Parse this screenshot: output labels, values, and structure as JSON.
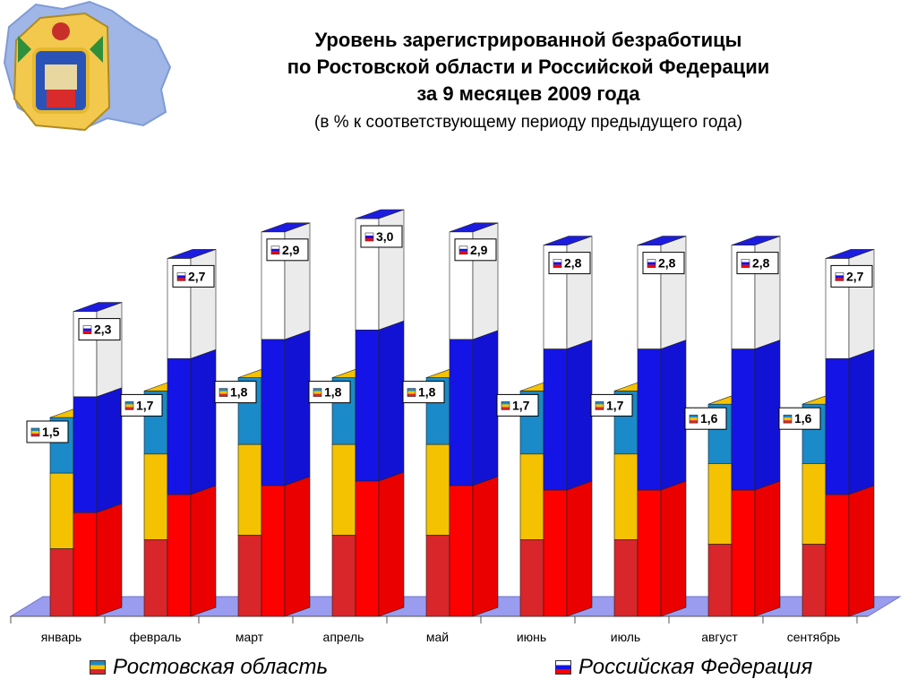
{
  "header": {
    "title_line1": "Уровень зарегистрированной безработицы",
    "title_line2": "по Ростовской области и Российской Федерации",
    "title_line3": "за 9 месяцев 2009 года",
    "subtitle": "(в % к соответствующему периоду предыдущего года)"
  },
  "emblem": {
    "icon": "rostov-oblast-coat-of-arms-icon"
  },
  "chart_data": {
    "type": "bar",
    "title": "Уровень зарегистрированной безработицы по Ростовской области и Российской Федерации за 9 месяцев 2009 года",
    "subtitle": "(в % к соответствующему периоду предыдущего года)",
    "categories": [
      "январь",
      "февраль",
      "март",
      "апрель",
      "май",
      "июнь",
      "июль",
      "август",
      "сентябрь"
    ],
    "series": [
      {
        "name": "Ростовская область",
        "values": [
          1.5,
          1.7,
          1.8,
          1.8,
          1.8,
          1.7,
          1.7,
          1.6,
          1.6
        ],
        "labels": [
          "1,5",
          "1,7",
          "1,8",
          "1,8",
          "1,8",
          "1,7",
          "1,7",
          "1,6",
          "1,6"
        ],
        "colors": [
          "#1a8ac8",
          "#f4c200",
          "#d8262a"
        ]
      },
      {
        "name": "Российская Федерация",
        "values": [
          2.3,
          2.7,
          2.9,
          3.0,
          2.9,
          2.8,
          2.8,
          2.8,
          2.7
        ],
        "labels": [
          "2,3",
          "2,7",
          "2,9",
          "3,0",
          "2,9",
          "2,8",
          "2,8",
          "2,8",
          "2,7"
        ],
        "colors": [
          "#ffffff",
          "#1414e6",
          "#ff0000"
        ]
      }
    ],
    "ylim": [
      0,
      3.2
    ],
    "grid": false,
    "legend": "bottom",
    "floor_color": "#9a9cf0"
  },
  "legend": {
    "rostov_label": "Ростовская область",
    "rf_label": "Российская Федерация"
  }
}
